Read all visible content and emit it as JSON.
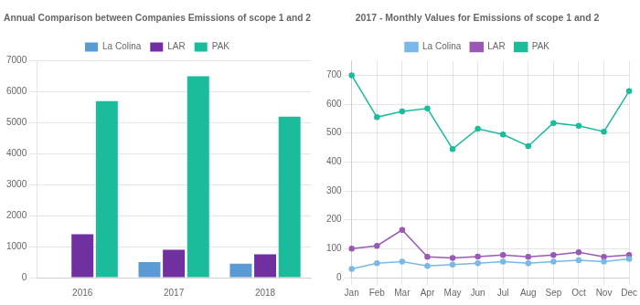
{
  "chart_data": [
    {
      "type": "bar",
      "title": "Annual Comparison between Companies Emissions of scope 1 and 2",
      "categories": [
        "2016",
        "2017",
        "2018"
      ],
      "series": [
        {
          "name": "La Colina",
          "color": "#5b9bd5",
          "values": [
            0,
            500,
            450
          ]
        },
        {
          "name": "LAR",
          "color": "#7030a0",
          "values": [
            1400,
            900,
            750
          ]
        },
        {
          "name": "PAK",
          "color": "#1abc9c",
          "values": [
            5700,
            6500,
            5200
          ]
        }
      ],
      "ylim": [
        0,
        7000
      ],
      "yticks": [
        0,
        1000,
        2000,
        3000,
        4000,
        5000,
        6000,
        7000
      ],
      "grid": "y",
      "legend": "top"
    },
    {
      "type": "line",
      "title": "2017 - Monthly Values for Emissions of scope 1 and 2",
      "categories": [
        "Jan",
        "Feb",
        "Mar",
        "Apr",
        "May",
        "Jun",
        "Jul",
        "Aug",
        "Sep",
        "Oct",
        "Nov",
        "Dec"
      ],
      "series": [
        {
          "name": "La Colina",
          "color": "#7ab8e8",
          "marker": "circle",
          "values": [
            30,
            50,
            55,
            40,
            45,
            50,
            55,
            50,
            55,
            60,
            55,
            65
          ]
        },
        {
          "name": "LAR",
          "color": "#9b59b6",
          "marker": "circle",
          "values": [
            100,
            110,
            165,
            72,
            68,
            73,
            78,
            72,
            78,
            88,
            72,
            78
          ]
        },
        {
          "name": "PAK",
          "color": "#1abc9c",
          "marker": "circle",
          "values": [
            700,
            555,
            575,
            585,
            445,
            515,
            495,
            455,
            535,
            525,
            505,
            645
          ]
        }
      ],
      "ylim": [
        0,
        750
      ],
      "yticks": [
        0,
        100,
        200,
        300,
        400,
        500,
        600,
        700
      ],
      "grid": true,
      "legend": "top"
    }
  ]
}
